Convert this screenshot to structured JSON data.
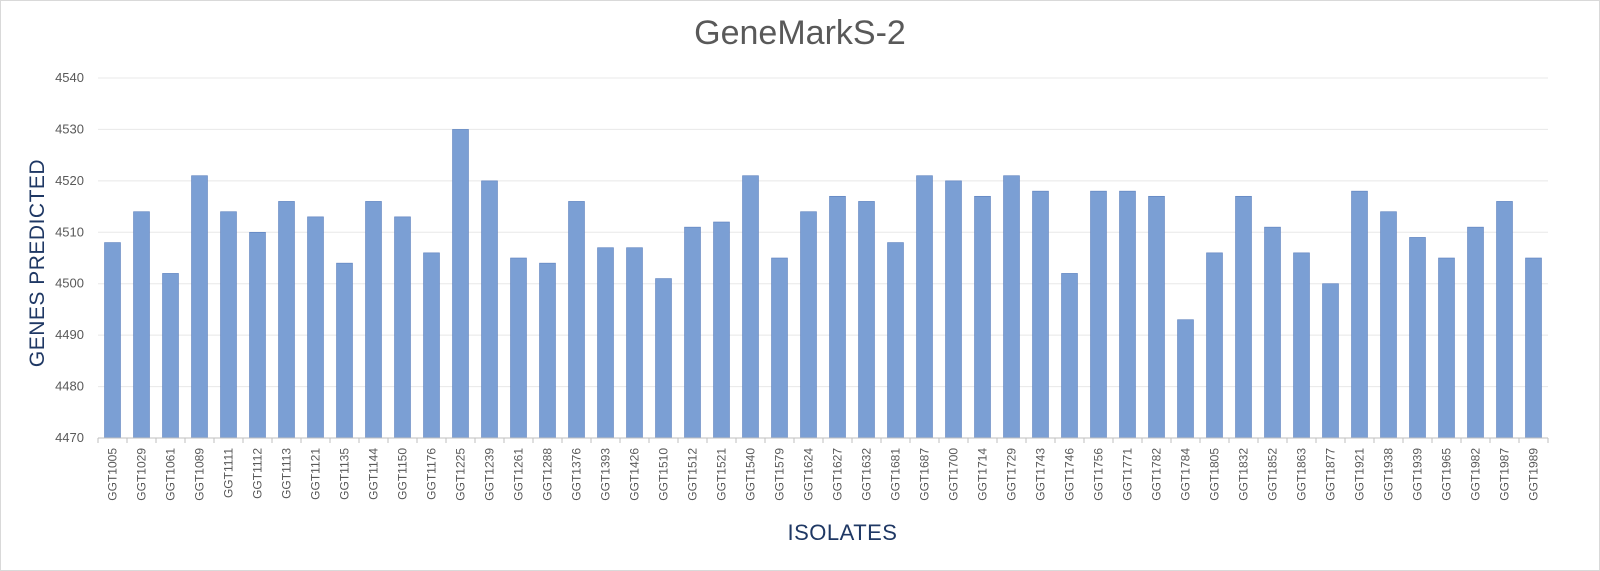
{
  "chart_data": {
    "type": "bar",
    "title": "GeneMarkS-2",
    "xlabel": "ISOLATES",
    "ylabel": "GENES PREDICTED",
    "ylim": [
      4470,
      4540
    ],
    "yticks": [
      4470,
      4480,
      4490,
      4500,
      4510,
      4520,
      4530,
      4540
    ],
    "grid": true,
    "categories": [
      "GGT1005",
      "GGT1029",
      "GGT1061",
      "GGT1089",
      "GGT1111",
      "GGT1112",
      "GGT1113",
      "GGT1121",
      "GGT1135",
      "GGT1144",
      "GGT1150",
      "GGT1176",
      "GGT1225",
      "GGT1239",
      "GGT1261",
      "GGT1288",
      "GGT1376",
      "GGT1393",
      "GGT1426",
      "GGT1510",
      "GGT1512",
      "GGT1521",
      "GGT1540",
      "GGT1579",
      "GGT1624",
      "GGT1627",
      "GGT1632",
      "GGT1681",
      "GGT1687",
      "GGT1700",
      "GGT1714",
      "GGT1729",
      "GGT1743",
      "GGT1746",
      "GGT1756",
      "GGT1771",
      "GGT1782",
      "GGT1784",
      "GGT1805",
      "GGT1832",
      "GGT1852",
      "GGT1863",
      "GGT1877",
      "GGT1921",
      "GGT1938",
      "GGT1939",
      "GGT1965",
      "GGT1982",
      "GGT1987",
      "GGT1989"
    ],
    "values": [
      4508,
      4514,
      4502,
      4521,
      4514,
      4510,
      4516,
      4513,
      4504,
      4516,
      4513,
      4506,
      4530,
      4520,
      4505,
      4504,
      4516,
      4507,
      4507,
      4501,
      4511,
      4512,
      4521,
      4505,
      4514,
      4517,
      4516,
      4508,
      4521,
      4520,
      4517,
      4521,
      4518,
      4502,
      4518,
      4518,
      4517,
      4493,
      4506,
      4517,
      4511,
      4506,
      4500,
      4518,
      4514,
      4509,
      4505,
      4511,
      4516,
      4505
    ],
    "bar_color": "#7b9fd4",
    "bar_edge_color": "#5b7fbd",
    "grid_color": "#e8e8e8",
    "axis_color": "#bfbfbf"
  }
}
